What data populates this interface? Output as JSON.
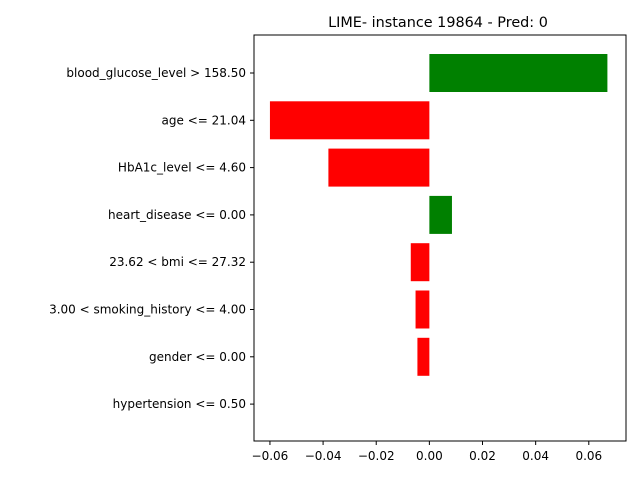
{
  "chart_data": {
    "type": "bar",
    "orientation": "horizontal",
    "title": "LIME- instance 19864 - Pred: 0",
    "xlabel": "",
    "ylabel": "",
    "categories": [
      "blood_glucose_level > 158.50",
      "age <= 21.04",
      "HbA1c_level <= 4.60",
      "heart_disease <= 0.00",
      "23.62 < bmi <= 27.32",
      "3.00 < smoking_history <= 4.00",
      "gender <= 0.00",
      "hypertension <= 0.50"
    ],
    "values": [
      0.067,
      -0.06,
      -0.038,
      0.0085,
      -0.007,
      -0.0052,
      -0.0045,
      0.0
    ],
    "xlim": [
      -0.066,
      0.074
    ],
    "xticks": [
      -0.06,
      -0.04,
      -0.02,
      0.0,
      0.02,
      0.04,
      0.06
    ],
    "xtick_labels": [
      "−0.06",
      "−0.04",
      "−0.02",
      "0.00",
      "0.02",
      "0.04",
      "0.06"
    ],
    "colors": {
      "positive": "#008000",
      "negative": "#ff0000"
    },
    "grid": false,
    "legend": "none"
  }
}
